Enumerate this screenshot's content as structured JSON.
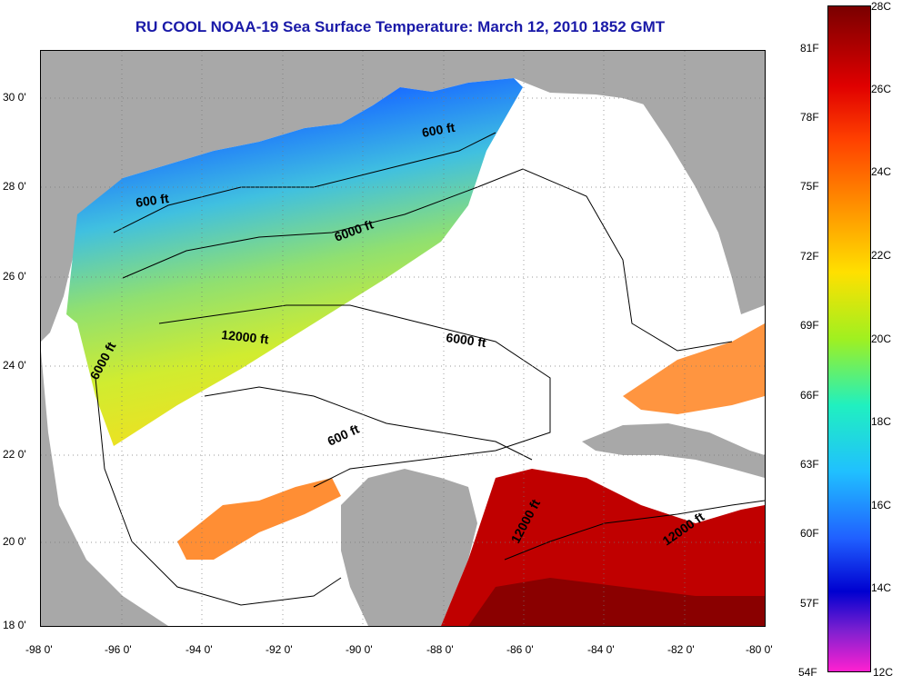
{
  "title": "RU COOL  NOAA-19  Sea Surface Temperature:  March 12, 2010 1852 GMT",
  "longitude_ticks": [
    "-98 0'",
    "-96 0'",
    "-94 0'",
    "-92 0'",
    "-90 0'",
    "-88 0'",
    "-86 0'",
    "-84 0'",
    "-82 0'",
    "-80 0'"
  ],
  "latitude_ticks": [
    "30 0'",
    "28 0'",
    "26 0'",
    "24 0'",
    "22 0'",
    "20 0'",
    "18 0'"
  ],
  "contour_labels": [
    "600 ft",
    "600 ft",
    "6000 ft",
    "12000 ft",
    "6000 ft",
    "6000 ft",
    "600 ft",
    "12000 ft",
    "12000 ft"
  ],
  "colorbar": {
    "fahrenheit_labels": [
      "81F",
      "78F",
      "75F",
      "72F",
      "69F",
      "66F",
      "63F",
      "60F",
      "57F",
      "54F"
    ],
    "celsius_labels": [
      "28C",
      "26C",
      "24C",
      "22C",
      "20C",
      "18C",
      "16C",
      "14C",
      "12C"
    ],
    "range_c": [
      12,
      28
    ]
  },
  "colors": {
    "land": "#a8a8a8",
    "title": "#1a1aa8",
    "ocean_no_data": "#ffffff"
  }
}
